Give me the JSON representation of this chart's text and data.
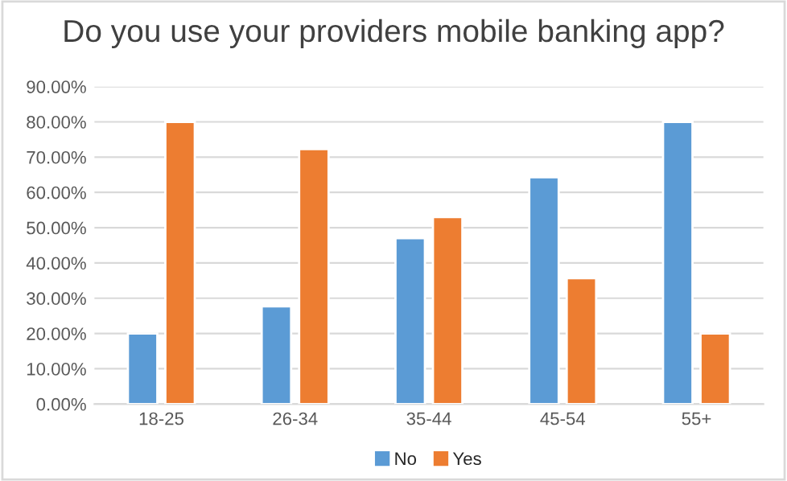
{
  "chart_data": {
    "type": "bar",
    "title": "Do you use your providers mobile banking app?",
    "categories": [
      "18-25",
      "26-34",
      "35-44",
      "45-54",
      "55+"
    ],
    "series": [
      {
        "name": "No",
        "color": "#5b9bd5",
        "values": [
          20,
          27.7,
          47,
          64.3,
          80
        ]
      },
      {
        "name": "Yes",
        "color": "#ed7d31",
        "values": [
          80,
          72.3,
          53,
          35.7,
          20
        ]
      }
    ],
    "ylim": [
      0,
      90
    ],
    "yticks": [
      {
        "value": 0,
        "label": "0.00%"
      },
      {
        "value": 10,
        "label": "10.00%"
      },
      {
        "value": 20,
        "label": "20.00%"
      },
      {
        "value": 30,
        "label": "30.00%"
      },
      {
        "value": 40,
        "label": "40.00%"
      },
      {
        "value": 50,
        "label": "50.00%"
      },
      {
        "value": 60,
        "label": "60.00%"
      },
      {
        "value": 70,
        "label": "70.00%"
      },
      {
        "value": 80,
        "label": "80.00%"
      },
      {
        "value": 90,
        "label": "90.00%"
      }
    ],
    "grid": "y",
    "legend": "bottom"
  }
}
